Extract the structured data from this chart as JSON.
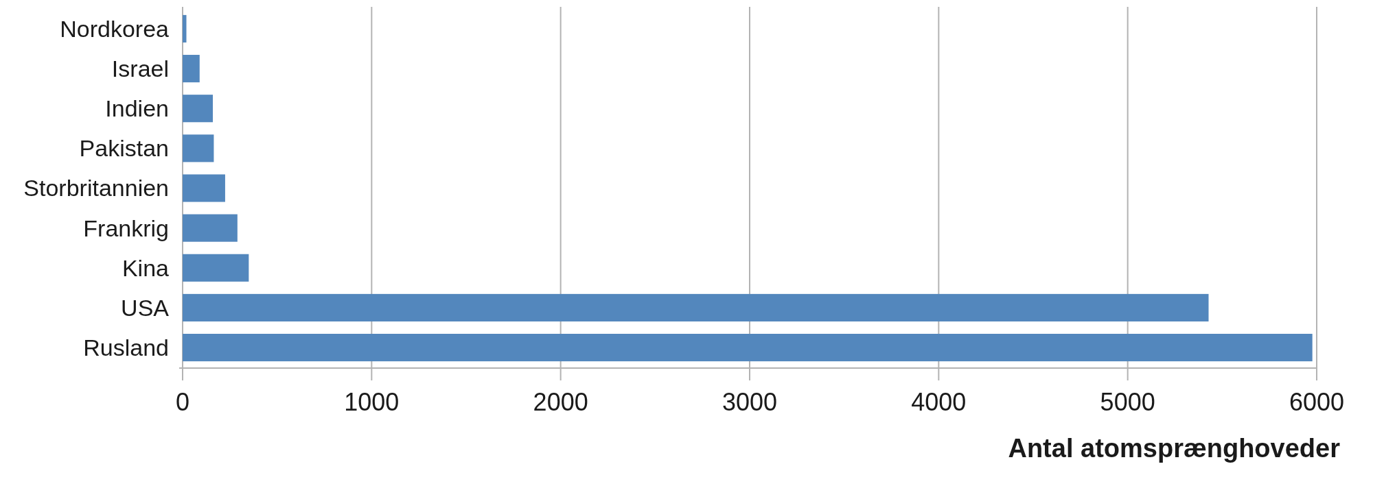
{
  "chart_data": {
    "type": "bar",
    "orientation": "horizontal",
    "categories": [
      "Nordkorea",
      "Israel",
      "Indien",
      "Pakistan",
      "Storbritannien",
      "Frankrig",
      "Kina",
      "USA",
      "Rusland"
    ],
    "values": [
      20,
      90,
      160,
      165,
      225,
      290,
      350,
      5428,
      5977
    ],
    "color": "#5387bd",
    "xlabel": "Antal atomsprænghoveder",
    "xlim": [
      0,
      6000
    ],
    "xticks": [
      0,
      1000,
      2000,
      3000,
      4000,
      5000,
      6000
    ],
    "grid": "x"
  }
}
